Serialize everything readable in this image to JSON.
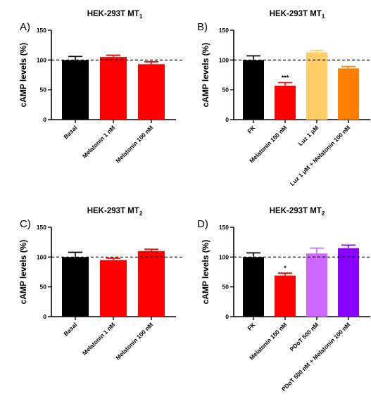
{
  "chart_data": [
    {
      "type": "bar",
      "panel_label": "A)",
      "title": "HEK-293T MT",
      "title_subscript": "1",
      "ylabel": "cAMP levels (%)",
      "ylim": [
        0,
        150
      ],
      "yticks": [
        0,
        50,
        100,
        150
      ],
      "reference_line": 100,
      "categories": [
        "Basal",
        "Melatonin 1 nM",
        "Melatonin 100 nM"
      ],
      "values": [
        100,
        105,
        93
      ],
      "errors": [
        6,
        3,
        4
      ],
      "colors": [
        "#000000",
        "#ff0000",
        "#ff0000"
      ],
      "significance": [
        "",
        "",
        ""
      ]
    },
    {
      "type": "bar",
      "panel_label": "B)",
      "title": "HEK-293T MT",
      "title_subscript": "1",
      "ylabel": "cAMP levels (%)",
      "ylim": [
        0,
        150
      ],
      "yticks": [
        0,
        50,
        100,
        150
      ],
      "reference_line": 100,
      "categories": [
        "FK",
        "Melatonin 100 nM",
        "Luz 1 μM",
        "Luz 1 μM + Melatonin 100 nM"
      ],
      "values": [
        100,
        57,
        113,
        86
      ],
      "errors": [
        7,
        5,
        3,
        3
      ],
      "colors": [
        "#000000",
        "#ff0000",
        "#ffcc66",
        "#ff8000"
      ],
      "significance": [
        "",
        "***",
        "",
        ""
      ]
    },
    {
      "type": "bar",
      "panel_label": "C)",
      "title": "HEK-293T MT",
      "title_subscript": "2",
      "ylabel": "cAMP levels (%)",
      "ylim": [
        0,
        150
      ],
      "yticks": [
        0,
        50,
        100,
        150
      ],
      "reference_line": 100,
      "categories": [
        "Basal",
        "Melatonin 1 nM",
        "Melatonin 100 nM"
      ],
      "values": [
        100,
        95,
        110
      ],
      "errors": [
        8,
        3,
        3
      ],
      "colors": [
        "#000000",
        "#ff0000",
        "#ff0000"
      ],
      "significance": [
        "",
        "",
        ""
      ]
    },
    {
      "type": "bar",
      "panel_label": "D)",
      "title": "HEK-293T MT",
      "title_subscript": "2",
      "ylabel": "cAMP levels (%)",
      "ylim": [
        0,
        150
      ],
      "yticks": [
        0,
        50,
        100,
        150
      ],
      "reference_line": 100,
      "categories": [
        "FK",
        "Melatonin 100 nM",
        "PDoT 500 nM",
        "PDoT 500 nM + Melatonin 100 nM"
      ],
      "values": [
        100,
        69,
        106,
        115
      ],
      "errors": [
        7,
        4,
        9,
        5
      ],
      "colors": [
        "#000000",
        "#ff0000",
        "#cc66ff",
        "#8800ff"
      ],
      "significance": [
        "",
        "*",
        "",
        ""
      ]
    }
  ]
}
